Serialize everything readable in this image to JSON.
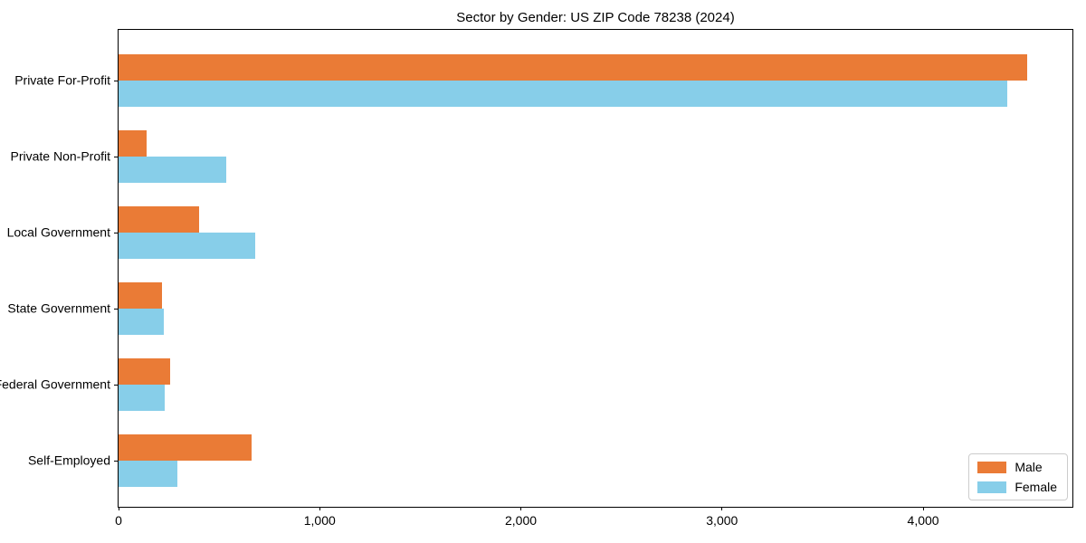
{
  "chart_data": {
    "type": "bar",
    "orientation": "horizontal",
    "title": "Sector by Gender: US ZIP Code 78238 (2024)",
    "categories": [
      "Private For-Profit",
      "Private Non-Profit",
      "Local Government",
      "State Government",
      "Federal Government",
      "Self-Employed"
    ],
    "series": [
      {
        "name": "Male",
        "color": "#ea7b36",
        "values": [
          4516,
          140,
          399,
          216,
          258,
          661
        ]
      },
      {
        "name": "Female",
        "color": "#87cee9",
        "values": [
          4418,
          534,
          680,
          224,
          231,
          294
        ]
      }
    ],
    "xlabel": "",
    "ylabel": "",
    "xlim": [
      0,
      4742
    ],
    "x_ticks": [
      0,
      1000,
      2000,
      3000,
      4000
    ],
    "x_tick_labels": [
      "0",
      "1,000",
      "2,000",
      "3,000",
      "4,000"
    ],
    "grid": false,
    "legend_position": "lower right",
    "axis_color": "#000000",
    "background_color": "#ffffff"
  }
}
